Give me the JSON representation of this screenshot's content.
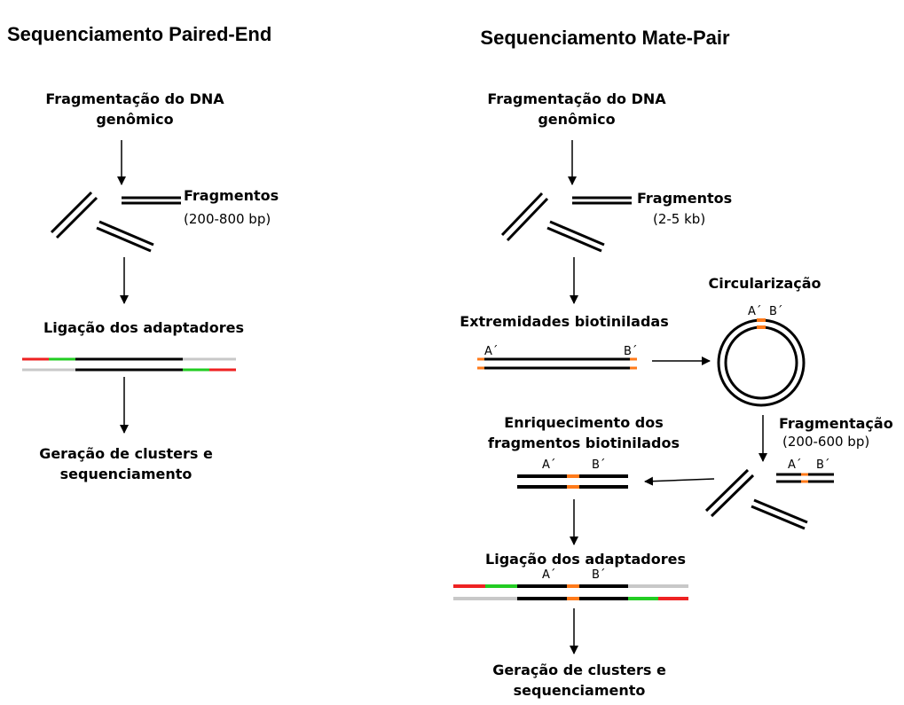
{
  "colors": {
    "strand": "#000000",
    "adapter_red": "#ee2222",
    "adapter_green": "#22cc22",
    "adapter_gray": "#c8c8c8",
    "biotin_orange": "#ff7a1a"
  },
  "paired_end": {
    "title": "Sequenciamento Paired-End",
    "step_fragmentation": [
      "Fragmentação do DNA",
      "genômico"
    ],
    "fragments_label": "Fragmentos",
    "fragments_size": "(200-800 bp)",
    "step_adapters": "Ligação dos adaptadores",
    "step_clusters": [
      "Geração de clusters e",
      "sequenciamento"
    ]
  },
  "mate_pair": {
    "title": "Sequenciamento Mate-Pair",
    "step_fragmentation": [
      "Fragmentação do DNA",
      "genômico"
    ],
    "fragments_label": "Fragmentos",
    "fragments_size": "(2-5 kb)",
    "step_biotinylated_ends": "Extremidades biotiniladas",
    "step_circularization": "Circularização",
    "step_fragmentation2": "Fragmentação",
    "fragmentation2_size": "(200-600 bp)",
    "step_enrichment": [
      "Enriquecimento dos",
      "fragmentos biotinilados"
    ],
    "step_adapters": "Ligação dos adaptadores",
    "step_clusters": [
      "Geração de clusters e",
      "sequenciamento"
    ],
    "end_label_a": "A´",
    "end_label_b": "B´"
  }
}
